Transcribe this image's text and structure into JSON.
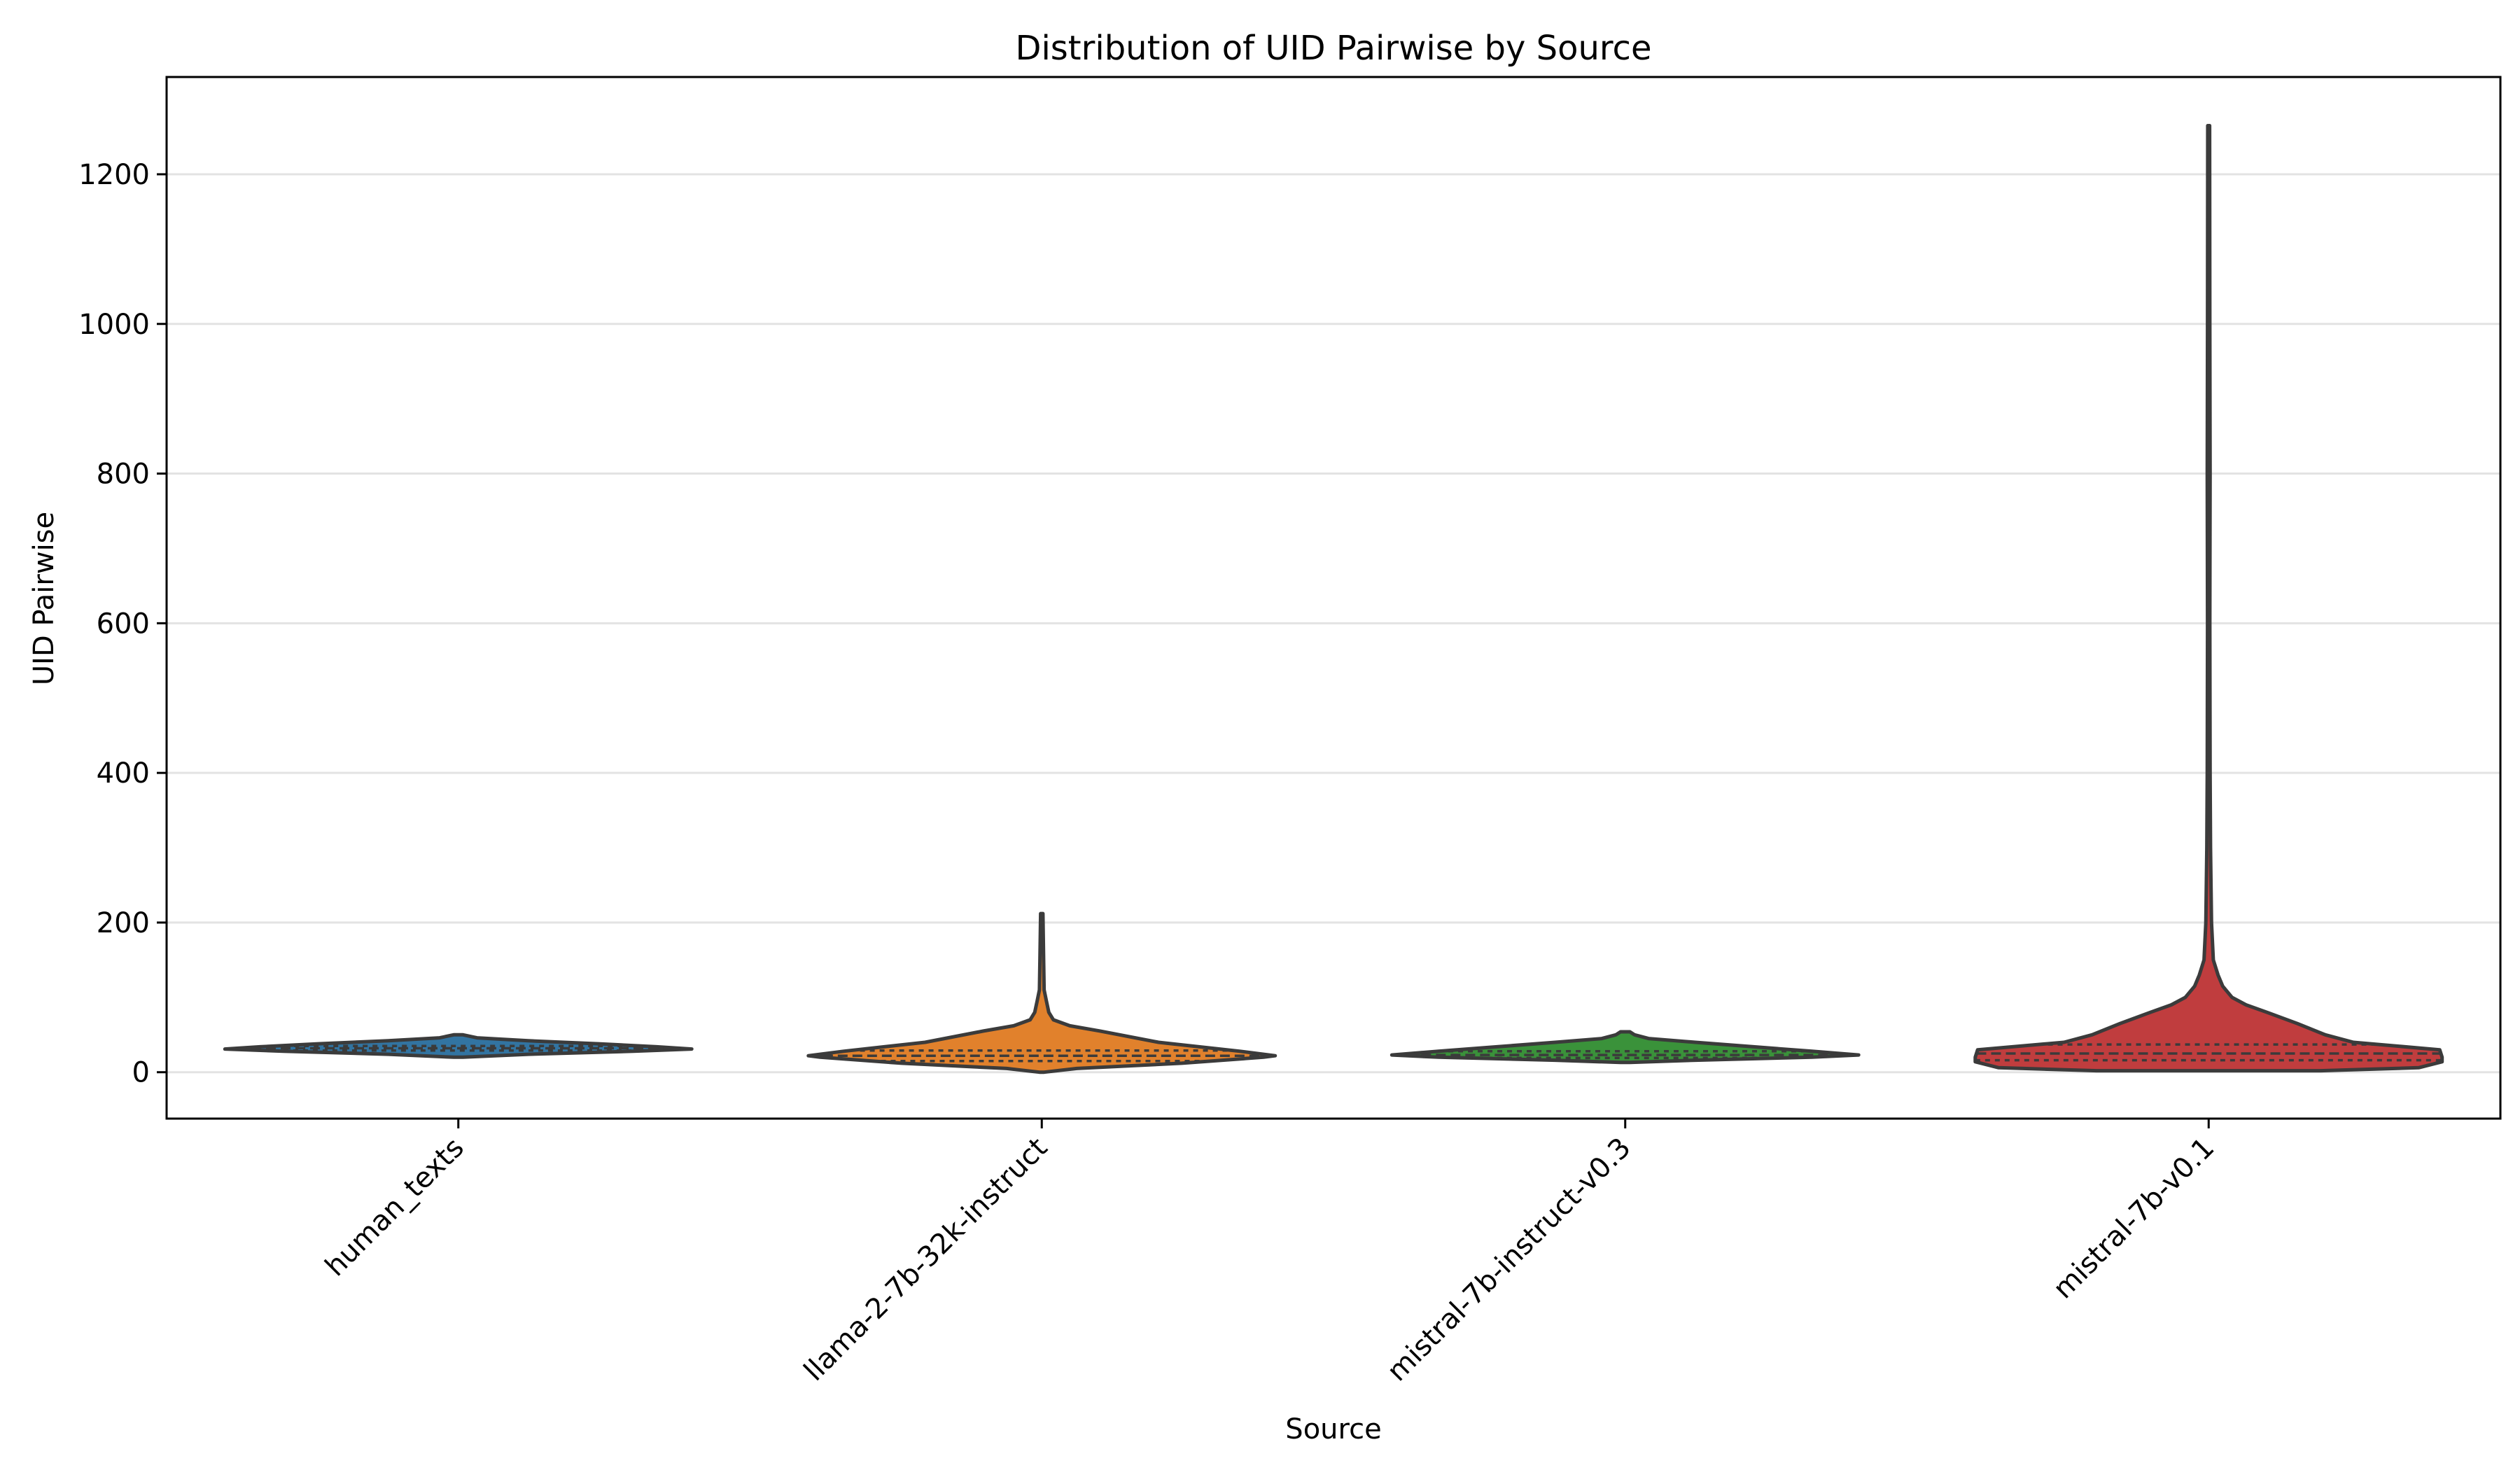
{
  "chart_data": {
    "type": "violin",
    "title": "Distribution of UID Pairwise by Source",
    "xlabel": "Source",
    "ylabel": "UID Pairwise",
    "ylim": [
      -62,
      1330
    ],
    "yticks": [
      0,
      200,
      400,
      600,
      800,
      1000,
      1200
    ],
    "grid": "y",
    "inner": "quartile",
    "categories": [
      "human_texts",
      "llama-2-7b-32k-instruct",
      "mistral-7b-instruct-v0.3",
      "mistral-7b-v0.1"
    ],
    "series": [
      {
        "category": "human_texts",
        "color": "#3274a1",
        "quartiles": [
          29,
          32,
          35
        ],
        "profile": [
          [
            20,
            0.02
          ],
          [
            24,
            0.3
          ],
          [
            28,
            0.75
          ],
          [
            31,
            1.0
          ],
          [
            34,
            0.85
          ],
          [
            38,
            0.6
          ],
          [
            42,
            0.3
          ],
          [
            46,
            0.08
          ],
          [
            50,
            0.02
          ]
        ]
      },
      {
        "category": "llama-2-7b-32k-instruct",
        "color": "#e1812c",
        "quartiles": [
          15,
          22,
          29
        ],
        "profile": [
          [
            0,
            0.01
          ],
          [
            5,
            0.15
          ],
          [
            12,
            0.6
          ],
          [
            20,
            0.95
          ],
          [
            22,
            1.0
          ],
          [
            28,
            0.85
          ],
          [
            40,
            0.5
          ],
          [
            55,
            0.25
          ],
          [
            62,
            0.12
          ],
          [
            70,
            0.05
          ],
          [
            80,
            0.03
          ],
          [
            95,
            0.02
          ],
          [
            110,
            0.01
          ],
          [
            150,
            0.008
          ],
          [
            212,
            0.005
          ]
        ]
      },
      {
        "category": "mistral-7b-instruct-v0.3",
        "color": "#3a923a",
        "quartiles": [
          19,
          23,
          28
        ],
        "profile": [
          [
            13,
            0.02
          ],
          [
            16,
            0.3
          ],
          [
            20,
            0.8
          ],
          [
            23,
            1.0
          ],
          [
            28,
            0.8
          ],
          [
            34,
            0.55
          ],
          [
            40,
            0.3
          ],
          [
            45,
            0.1
          ],
          [
            50,
            0.04
          ],
          [
            54,
            0.02
          ]
        ]
      },
      {
        "category": "mistral-7b-v0.1",
        "color": "#c03d3e",
        "quartiles": [
          16,
          25,
          37
        ],
        "profile": [
          [
            2,
            0.48
          ],
          [
            6,
            0.9
          ],
          [
            14,
            1.0
          ],
          [
            20,
            1.0
          ],
          [
            30,
            0.99
          ],
          [
            40,
            0.62
          ],
          [
            50,
            0.5
          ],
          [
            65,
            0.38
          ],
          [
            80,
            0.25
          ],
          [
            90,
            0.16
          ],
          [
            100,
            0.1
          ],
          [
            115,
            0.06
          ],
          [
            130,
            0.04
          ],
          [
            150,
            0.02
          ],
          [
            200,
            0.012
          ],
          [
            300,
            0.008
          ],
          [
            400,
            0.006
          ],
          [
            600,
            0.005
          ],
          [
            800,
            0.006
          ],
          [
            1000,
            0.005
          ],
          [
            1265,
            0.004
          ]
        ]
      }
    ]
  }
}
